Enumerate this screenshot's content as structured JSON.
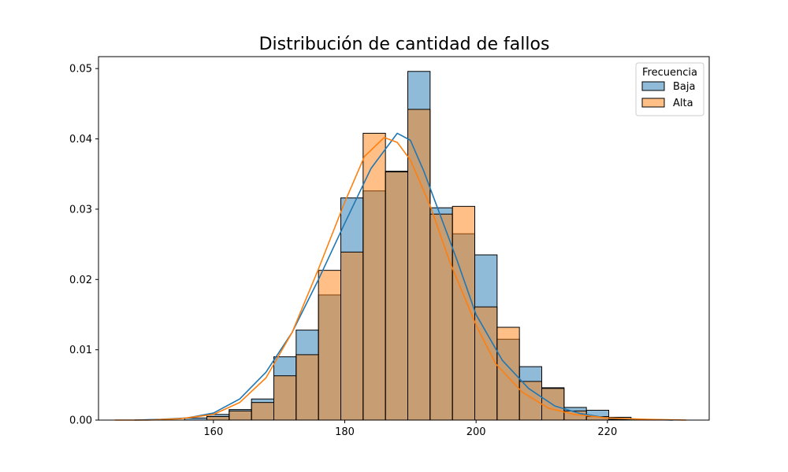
{
  "chart_data": {
    "type": "histogram",
    "title": "Distribución de cantidad de fallos",
    "xlabel": "",
    "ylabel": "",
    "xlim": [
      142.5,
      235.5
    ],
    "ylim": [
      0,
      0.0517
    ],
    "xticks": [
      160,
      180,
      200,
      220
    ],
    "yticks": [
      0.0,
      0.01,
      0.02,
      0.03,
      0.04,
      0.05
    ],
    "ytick_labels": [
      "0.00",
      "0.01",
      "0.02",
      "0.03",
      "0.04",
      "0.05"
    ],
    "grid": false,
    "legend": {
      "title": "Frecuencia",
      "position": "top-right",
      "entries": [
        "Baja",
        "Alta"
      ]
    },
    "colors": {
      "Baja": "#1f77b4",
      "Alta": "#ff7f0e"
    },
    "bin_edges": [
      148.8,
      152.2,
      155.6,
      159.0,
      162.4,
      165.8,
      169.2,
      172.6,
      176.0,
      179.4,
      182.8,
      186.2,
      189.6,
      193.0,
      196.4,
      199.8,
      203.2,
      206.6,
      210.0,
      213.4,
      216.8,
      220.2,
      223.6,
      227.0,
      230.4
    ],
    "series": [
      {
        "name": "Baja",
        "density": [
          0,
          0,
          0.0003,
          0.0008,
          0.0015,
          0.003,
          0.009,
          0.0128,
          0.0178,
          0.0316,
          0.0326,
          0.0354,
          0.0496,
          0.0302,
          0.0265,
          0.0235,
          0.0115,
          0.0076,
          0.0046,
          0.0018,
          0.0014,
          0.0004,
          0,
          0
        ],
        "kde": [
          [
            148,
            0.0
          ],
          [
            152,
            0.0001
          ],
          [
            156,
            0.0003
          ],
          [
            160,
            0.001
          ],
          [
            164,
            0.003
          ],
          [
            168,
            0.0068
          ],
          [
            172,
            0.0125
          ],
          [
            176,
            0.02
          ],
          [
            180,
            0.028
          ],
          [
            184,
            0.0358
          ],
          [
            188,
            0.0408
          ],
          [
            190,
            0.0398
          ],
          [
            192,
            0.0355
          ],
          [
            194,
            0.0305
          ],
          [
            197,
            0.023
          ],
          [
            200,
            0.015
          ],
          [
            204,
            0.0085
          ],
          [
            208,
            0.0045
          ],
          [
            212,
            0.002
          ],
          [
            216,
            0.0009
          ],
          [
            220,
            0.0003
          ],
          [
            225,
            0.0001
          ],
          [
            230,
            0.0
          ]
        ]
      },
      {
        "name": "Alta",
        "density": [
          0,
          0,
          0,
          0.0005,
          0.0013,
          0.0025,
          0.0063,
          0.0093,
          0.0213,
          0.0239,
          0.0408,
          0.0353,
          0.0442,
          0.0293,
          0.0304,
          0.0161,
          0.0132,
          0.0055,
          0.0045,
          0.0013,
          0.0005,
          0.0001,
          0,
          0
        ],
        "kde": [
          [
            145,
            0.0
          ],
          [
            150,
            0.0
          ],
          [
            155,
            0.0002
          ],
          [
            160,
            0.0008
          ],
          [
            164,
            0.0025
          ],
          [
            168,
            0.006
          ],
          [
            172,
            0.0125
          ],
          [
            176,
            0.0215
          ],
          [
            180,
            0.031
          ],
          [
            183,
            0.0375
          ],
          [
            186,
            0.0402
          ],
          [
            188,
            0.0395
          ],
          [
            190,
            0.037
          ],
          [
            193,
            0.0305
          ],
          [
            196,
            0.0225
          ],
          [
            200,
            0.0135
          ],
          [
            203,
            0.008
          ],
          [
            207,
            0.004
          ],
          [
            211,
            0.0017
          ],
          [
            215,
            0.0008
          ],
          [
            220,
            0.0003
          ],
          [
            226,
            0.0001
          ],
          [
            232,
            0.0
          ]
        ]
      }
    ]
  }
}
